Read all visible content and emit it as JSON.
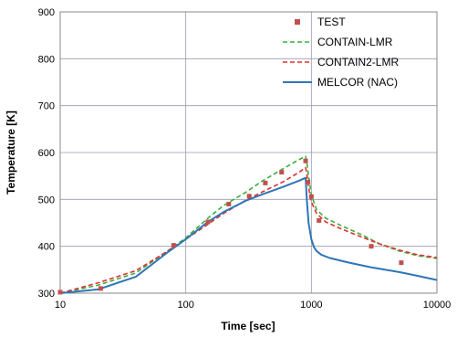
{
  "chart_data": {
    "type": "line",
    "xlabel": "Time [sec]",
    "ylabel": "Temperature [K]",
    "xscale": "log",
    "xlim": [
      10,
      10000
    ],
    "ylim": [
      300,
      900
    ],
    "xticks": [
      10,
      100,
      1000,
      10000
    ],
    "xtick_labels": [
      "10",
      "100",
      "1000",
      "10000"
    ],
    "yticks": [
      300,
      400,
      500,
      600,
      700,
      800,
      900
    ],
    "ytick_labels": [
      "300",
      "400",
      "500",
      "600",
      "700",
      "800",
      "900"
    ],
    "grid": true,
    "legend_position": "top-right",
    "series": [
      {
        "name": "TEST",
        "style": "markers",
        "color": "#c0504d",
        "x": [
          10,
          21,
          80,
          150,
          220,
          320,
          430,
          580,
          900,
          940,
          1000,
          1150,
          3000,
          5200
        ],
        "y": [
          302,
          310,
          402,
          452,
          490,
          507,
          535,
          558,
          582,
          537,
          506,
          455,
          400,
          365
        ]
      },
      {
        "name": "CONTAIN-LMR",
        "style": "dashed",
        "color": "#3cae3c",
        "x": [
          10,
          20,
          40,
          70,
          100,
          150,
          200,
          300,
          400,
          600,
          800,
          900,
          920,
          950,
          1000,
          1100,
          1300,
          1700,
          2500,
          3500,
          5000,
          7000,
          10000
        ],
        "y": [
          300,
          317,
          343,
          388,
          418,
          460,
          487,
          515,
          538,
          566,
          585,
          592,
          580,
          550,
          510,
          478,
          460,
          445,
          425,
          405,
          390,
          380,
          374
        ]
      },
      {
        "name": "CONTAIN2-LMR",
        "style": "dashed",
        "color": "#e03030",
        "x": [
          10,
          20,
          40,
          70,
          100,
          150,
          200,
          300,
          400,
          600,
          800,
          900,
          920,
          950,
          1000,
          1100,
          1300,
          1700,
          2500,
          3500,
          5000,
          7000,
          10000
        ],
        "y": [
          300,
          322,
          348,
          388,
          415,
          447,
          470,
          498,
          515,
          538,
          558,
          568,
          555,
          525,
          495,
          470,
          452,
          438,
          420,
          405,
          392,
          382,
          376
        ]
      },
      {
        "name": "MELCOR (NAC)",
        "style": "solid",
        "color": "#2e75b6",
        "x": [
          10,
          20,
          40,
          70,
          100,
          150,
          200,
          300,
          400,
          600,
          800,
          900,
          920,
          950,
          1000,
          1050,
          1100,
          1200,
          1400,
          2000,
          3000,
          5000,
          7000,
          10000
        ],
        "y": [
          300,
          308,
          335,
          385,
          415,
          452,
          473,
          497,
          510,
          527,
          540,
          546,
          500,
          450,
          415,
          398,
          390,
          382,
          375,
          365,
          355,
          345,
          337,
          328
        ]
      }
    ]
  }
}
